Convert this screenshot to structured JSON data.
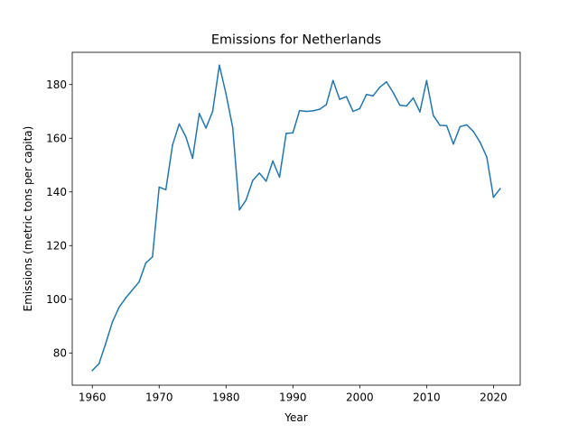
{
  "chart_data": {
    "type": "line",
    "title": "Emissions for Netherlands",
    "xlabel": "Year",
    "ylabel": "Emissions (metric tons per capita)",
    "xlim": [
      1957,
      2024
    ],
    "ylim": [
      68,
      192
    ],
    "xticks": [
      1960,
      1970,
      1980,
      1990,
      2000,
      2010,
      2020
    ],
    "yticks": [
      80,
      100,
      120,
      140,
      160,
      180
    ],
    "grid": false,
    "legend": "none",
    "series": [
      {
        "color": "#1f77b4",
        "x": [
          1960,
          1961,
          1962,
          1963,
          1964,
          1965,
          1966,
          1967,
          1968,
          1969,
          1970,
          1971,
          1972,
          1973,
          1974,
          1975,
          1976,
          1977,
          1978,
          1979,
          1980,
          1981,
          1982,
          1983,
          1984,
          1985,
          1986,
          1987,
          1988,
          1989,
          1990,
          1991,
          1992,
          1993,
          1994,
          1995,
          1996,
          1997,
          1998,
          1999,
          2000,
          2001,
          2002,
          2003,
          2004,
          2005,
          2006,
          2007,
          2008,
          2009,
          2010,
          2011,
          2012,
          2013,
          2014,
          2015,
          2016,
          2017,
          2018,
          2019,
          2020,
          2021
        ],
        "y": [
          73.5,
          76.0,
          83.5,
          91.5,
          97.0,
          100.5,
          103.5,
          106.5,
          113.5,
          115.8,
          141.8,
          140.8,
          157.5,
          165.3,
          160.5,
          152.5,
          169.2,
          163.8,
          170.0,
          187.2,
          176.5,
          164.0,
          133.3,
          137.0,
          144.3,
          147.0,
          144.0,
          151.5,
          145.5,
          161.8,
          162.0,
          170.3,
          170.0,
          170.2,
          170.8,
          172.5,
          181.5,
          174.5,
          175.5,
          170.0,
          171.0,
          176.3,
          175.8,
          179.0,
          181.0,
          177.0,
          172.3,
          172.0,
          175.0,
          169.8,
          181.5,
          168.5,
          164.8,
          164.7,
          157.8,
          164.3,
          165.0,
          162.5,
          158.5,
          153.0,
          138.0,
          141.2
        ]
      }
    ]
  }
}
